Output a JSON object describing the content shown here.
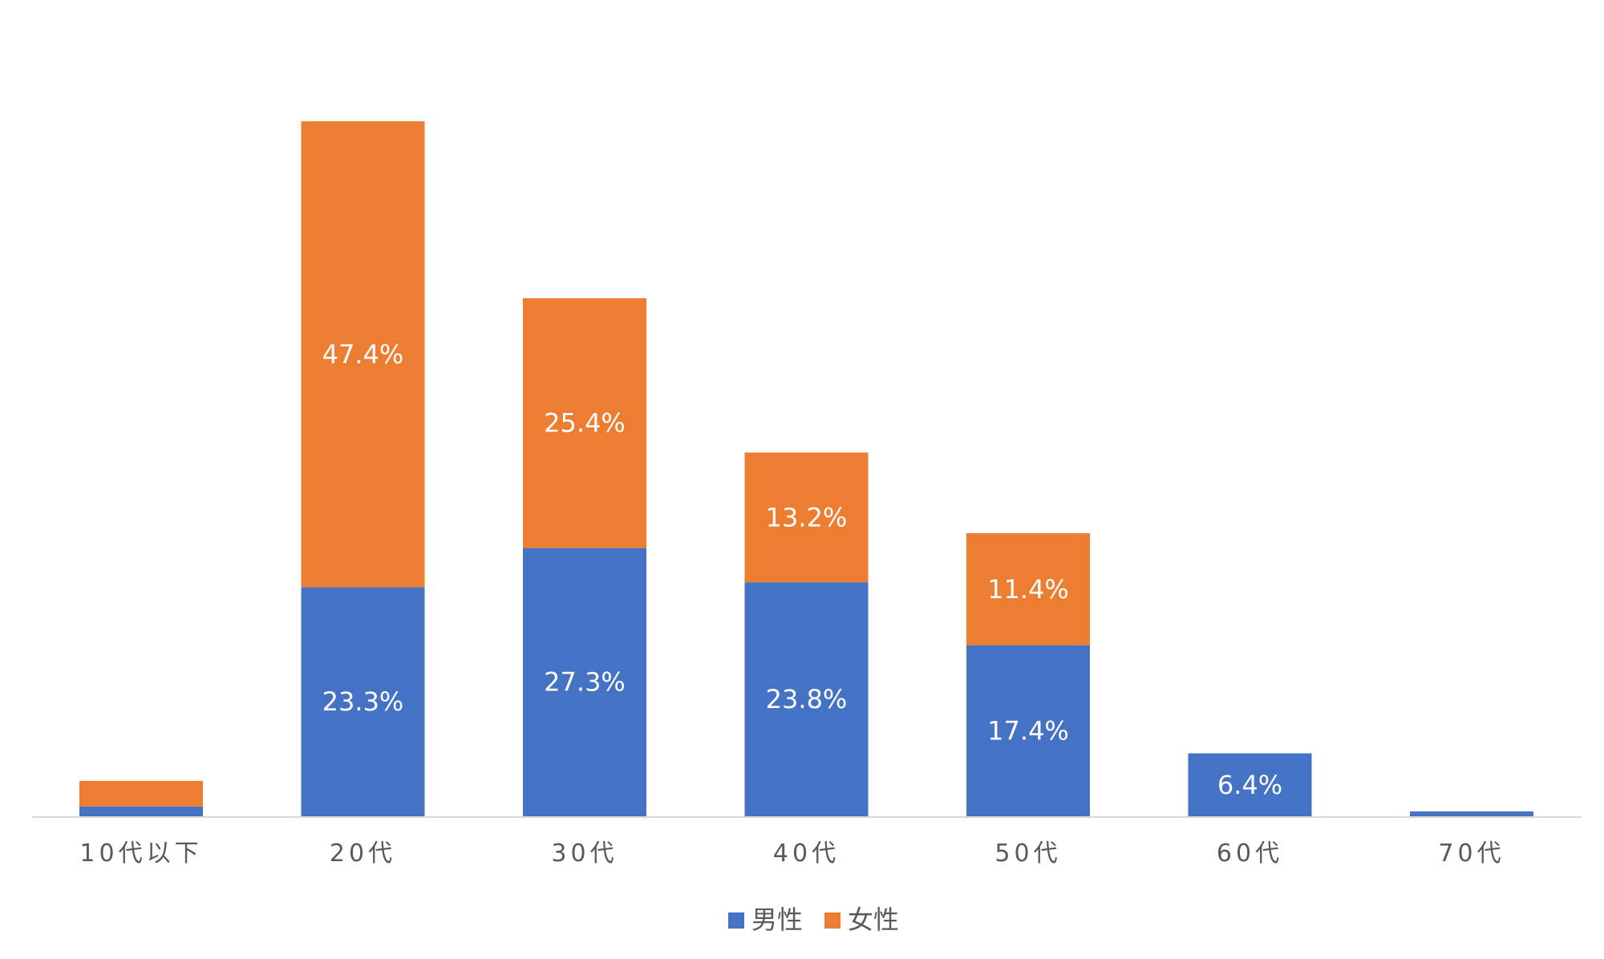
{
  "chart_data": {
    "type": "bar",
    "stacked": true,
    "title": "",
    "xlabel": "",
    "ylabel": "",
    "categories": [
      "10代以下",
      "20代",
      "30代",
      "40代",
      "50代",
      "60代",
      "70代"
    ],
    "series": [
      {
        "name": "男性",
        "color": "#4472C4",
        "values": [
          1.0,
          23.3,
          27.3,
          23.8,
          17.4,
          6.4,
          0.5
        ],
        "labels": [
          "",
          "23.3%",
          "27.3%",
          "23.8%",
          "17.4%",
          "6.4%",
          ""
        ]
      },
      {
        "name": "女性",
        "color": "#ED7D31",
        "values": [
          2.6,
          47.4,
          25.4,
          13.2,
          11.4,
          0,
          0
        ],
        "labels": [
          "",
          "47.4%",
          "25.4%",
          "13.2%",
          "11.4%",
          "",
          ""
        ]
      }
    ],
    "ylim": [
      0,
      80
    ],
    "grid": false,
    "legend": "bottom",
    "axis_color": "#D9D9D9"
  }
}
